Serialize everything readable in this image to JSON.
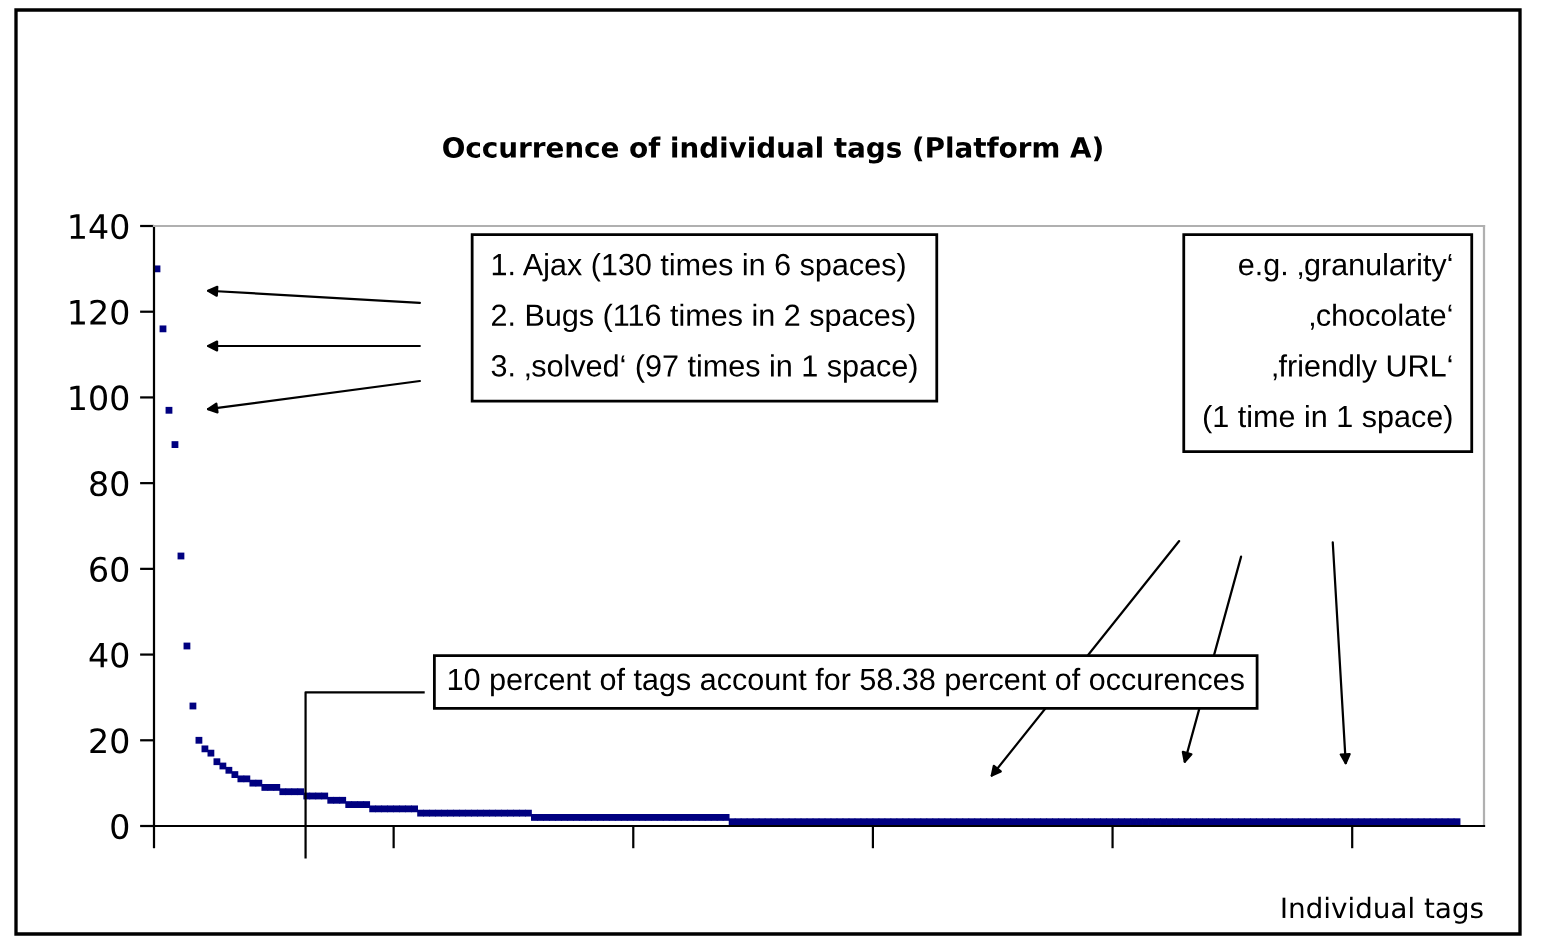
{
  "chart_data": {
    "type": "scatter",
    "title": "Occurrence of individual tags (Platform A)",
    "xlabel": "Individual tags",
    "categories": [
      null,
      null,
      null,
      null,
      null,
      null,
      null,
      null,
      null,
      null,
      null,
      null,
      null,
      null,
      null,
      null,
      null,
      null,
      null,
      null,
      null,
      null,
      null,
      null,
      null,
      null,
      null,
      null,
      null,
      null,
      null,
      null,
      null,
      null,
      null,
      null,
      null,
      null,
      null,
      null,
      null,
      null,
      null,
      null,
      null,
      null,
      null,
      null,
      null,
      null,
      null,
      null,
      null,
      null,
      null,
      null,
      null,
      null,
      null,
      null,
      null,
      null,
      null,
      null,
      null,
      null,
      null,
      null,
      null,
      null,
      null,
      null,
      null,
      null,
      null,
      null,
      null,
      null,
      null,
      null,
      null,
      null,
      null,
      null,
      null,
      null,
      null,
      null,
      null,
      null,
      null,
      null,
      null,
      null,
      null,
      null,
      null,
      null,
      null,
      null,
      null,
      null,
      null,
      null,
      null,
      null,
      null,
      null,
      null,
      null,
      null,
      null,
      null,
      null,
      null,
      null,
      null,
      null,
      null,
      null,
      null,
      null,
      null,
      null,
      null,
      null,
      null,
      null,
      null,
      null,
      null,
      null,
      null,
      null,
      null,
      null,
      null,
      null,
      null,
      null,
      null,
      null,
      null,
      null,
      null,
      null,
      null,
      null,
      null,
      null,
      null,
      null,
      null,
      null,
      null,
      null,
      null,
      null,
      null,
      null,
      null,
      null,
      null,
      null,
      null,
      null,
      null,
      null,
      null,
      null,
      null,
      null,
      null,
      null,
      null,
      null,
      null,
      null,
      null,
      null,
      null,
      null,
      null,
      null,
      null,
      null,
      null,
      null,
      null,
      null,
      null,
      null,
      null,
      null,
      null,
      null,
      null,
      null,
      null,
      null,
      null,
      null,
      null,
      null,
      null,
      null,
      null,
      null,
      null,
      null,
      null,
      null,
      null,
      null,
      null,
      null,
      null,
      null,
      null,
      null,
      null,
      null
    ],
    "series": [
      {
        "color": "#000080",
        "values": [
          130,
          116,
          97,
          89,
          63,
          42,
          28,
          20,
          18,
          17,
          15,
          14,
          13,
          12,
          11,
          11,
          10,
          10,
          9,
          9,
          9,
          8,
          8,
          8,
          8,
          7,
          7,
          7,
          7,
          6,
          6,
          6,
          5,
          5,
          5,
          5,
          4,
          4,
          4,
          4,
          4,
          4,
          4,
          4,
          3,
          3,
          3,
          3,
          3,
          3,
          3,
          3,
          3,
          3,
          3,
          3,
          3,
          3,
          3,
          3,
          3,
          3,
          3,
          2,
          2,
          2,
          2,
          2,
          2,
          2,
          2,
          2,
          2,
          2,
          2,
          2,
          2,
          2,
          2,
          2,
          2,
          2,
          2,
          2,
          2,
          2,
          2,
          2,
          2,
          2,
          2,
          2,
          2,
          2,
          2,
          2,
          1,
          1,
          1,
          1,
          1,
          1,
          1,
          1,
          1,
          1,
          1,
          1,
          1,
          1,
          1,
          1,
          1,
          1,
          1,
          1,
          1,
          1,
          1,
          1,
          1,
          1,
          1,
          1,
          1,
          1,
          1,
          1,
          1,
          1,
          1,
          1,
          1,
          1,
          1,
          1,
          1,
          1,
          1,
          1,
          1,
          1,
          1,
          1,
          1,
          1,
          1,
          1,
          1,
          1,
          1,
          1,
          1,
          1,
          1,
          1,
          1,
          1,
          1,
          1,
          1,
          1,
          1,
          1,
          1,
          1,
          1,
          1,
          1,
          1,
          1,
          1,
          1,
          1,
          1,
          1,
          1,
          1,
          1,
          1,
          1,
          1,
          1,
          1,
          1,
          1,
          1,
          1,
          1,
          1,
          1,
          1,
          1,
          1,
          1,
          1,
          1,
          1,
          1,
          1,
          1,
          1,
          1,
          1,
          1,
          1,
          1,
          1,
          1,
          1,
          1,
          1,
          1,
          1,
          1,
          1,
          1,
          1,
          null,
          null,
          null,
          null
        ]
      }
    ],
    "ylim": [
      0,
      140
    ],
    "yticks": [
      0,
      20,
      40,
      60,
      80,
      100,
      120,
      140
    ],
    "marker": "square",
    "grid": false,
    "legend": false,
    "annotations": [
      "1. Ajax (130 times in 6 spaces)\n2. Bugs (116 times in 2 spaces)\n3. ‚solved‘ (97 times in 1 space)",
      "e.g. ‚granularity‘\n‚chocolate‘\n‚friendly URL‘\n(1 time in 1 space)",
      "10 percent of tags account for 58.38 percent of occurences"
    ]
  }
}
